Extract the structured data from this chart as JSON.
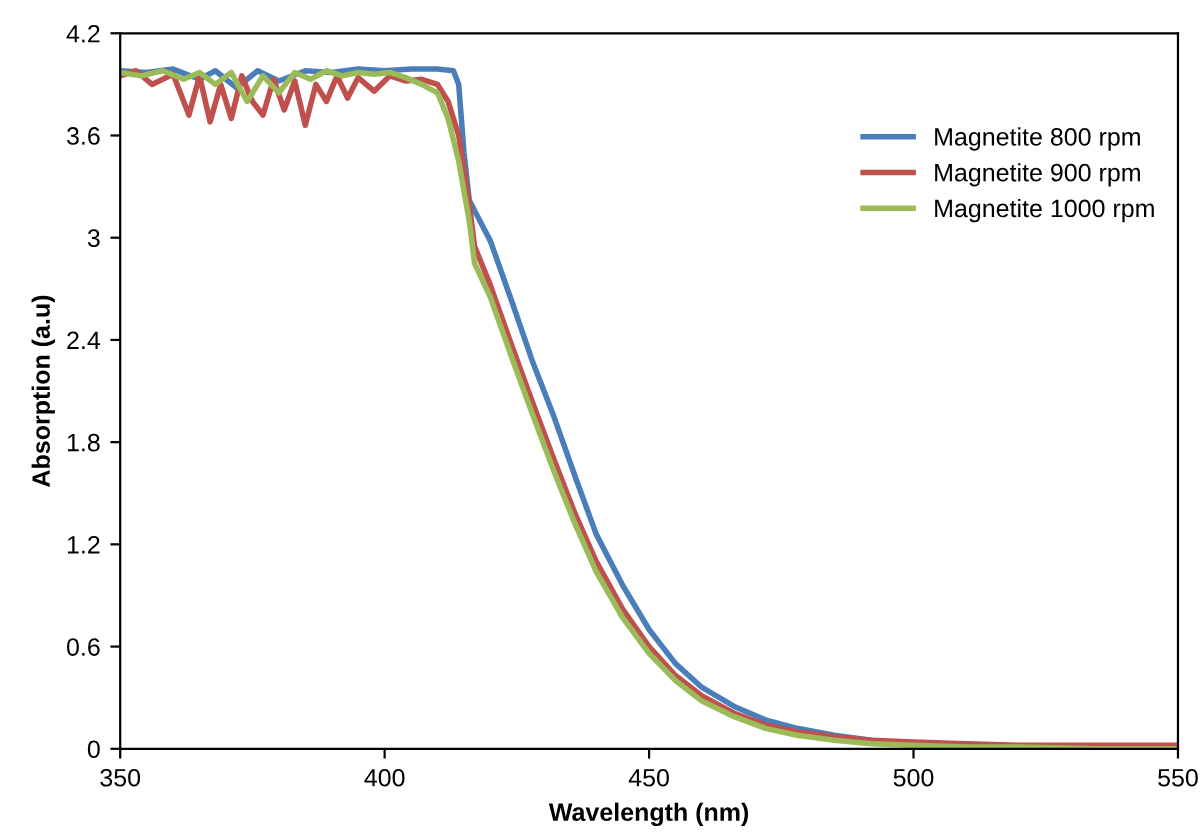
{
  "chart_data": {
    "type": "line",
    "xlabel": "Wavelength (nm)",
    "ylabel": "Absorption (a.u)",
    "xlim": [
      350,
      550
    ],
    "xticks": [
      350,
      400,
      450,
      500,
      550
    ],
    "ylim": [
      0,
      4.2
    ],
    "yticks": [
      0,
      0.6,
      1.2,
      1.8,
      2.4,
      3,
      3.6,
      4.2
    ],
    "grid": false,
    "legend": "top right",
    "marker": "none",
    "line_style": "solid",
    "series": [
      {
        "name": "Magnetite 800 rpm",
        "color": "#4a7ebb",
        "x": [
          350,
          355,
          360,
          365,
          368,
          372,
          376,
          380,
          385,
          390,
          395,
          400,
          405,
          410,
          413,
          414,
          415,
          416,
          418,
          420,
          424,
          428,
          432,
          436,
          440,
          445,
          450,
          455,
          460,
          466,
          472,
          478,
          485,
          492,
          500
        ],
        "values": [
          3.98,
          3.97,
          3.99,
          3.93,
          3.98,
          3.88,
          3.98,
          3.92,
          3.98,
          3.97,
          3.99,
          3.98,
          3.99,
          3.99,
          3.98,
          3.9,
          3.5,
          3.22,
          3.1,
          2.98,
          2.63,
          2.27,
          1.95,
          1.6,
          1.26,
          0.96,
          0.7,
          0.5,
          0.36,
          0.25,
          0.17,
          0.12,
          0.08,
          0.05,
          0.03
        ]
      },
      {
        "name": "Magnetite 900 rpm",
        "color": "#c0504d",
        "x": [
          350,
          353,
          356,
          360,
          363,
          365,
          367,
          369,
          371,
          373,
          375,
          377,
          379,
          381,
          383,
          385,
          387,
          389,
          391,
          393,
          395,
          398,
          401,
          404,
          407,
          410,
          412,
          414,
          416,
          417,
          420,
          424,
          428,
          432,
          436,
          440,
          445,
          450,
          455,
          460,
          466,
          472,
          478,
          485,
          492,
          500,
          510,
          520,
          535,
          550
        ],
        "values": [
          3.95,
          3.98,
          3.9,
          3.96,
          3.72,
          3.95,
          3.68,
          3.9,
          3.7,
          3.95,
          3.8,
          3.72,
          3.93,
          3.75,
          3.92,
          3.66,
          3.9,
          3.8,
          3.95,
          3.82,
          3.94,
          3.86,
          3.95,
          3.92,
          3.93,
          3.9,
          3.8,
          3.6,
          3.2,
          2.95,
          2.72,
          2.37,
          2.03,
          1.7,
          1.38,
          1.1,
          0.82,
          0.6,
          0.43,
          0.31,
          0.21,
          0.14,
          0.1,
          0.07,
          0.05,
          0.04,
          0.03,
          0.02,
          0.02,
          0.02
        ]
      },
      {
        "name": "Magnetite 1000 rpm",
        "color": "#9bbb59",
        "x": [
          350,
          354,
          358,
          362,
          365,
          368,
          371,
          374,
          377,
          380,
          383,
          386,
          389,
          392,
          395,
          398,
          401,
          404,
          407,
          410,
          412,
          414,
          416,
          417,
          420,
          424,
          428,
          432,
          436,
          440,
          445,
          450,
          455,
          460,
          466,
          472,
          478,
          485,
          492,
          500,
          510,
          520,
          535,
          550
        ],
        "values": [
          3.97,
          3.95,
          3.98,
          3.93,
          3.97,
          3.9,
          3.97,
          3.8,
          3.95,
          3.85,
          3.97,
          3.93,
          3.98,
          3.95,
          3.97,
          3.96,
          3.97,
          3.94,
          3.9,
          3.85,
          3.7,
          3.45,
          3.1,
          2.85,
          2.65,
          2.3,
          1.96,
          1.63,
          1.32,
          1.04,
          0.77,
          0.56,
          0.4,
          0.28,
          0.19,
          0.12,
          0.08,
          0.05,
          0.03,
          0.02,
          0.01,
          0.01,
          0.0,
          0.0
        ]
      }
    ]
  }
}
